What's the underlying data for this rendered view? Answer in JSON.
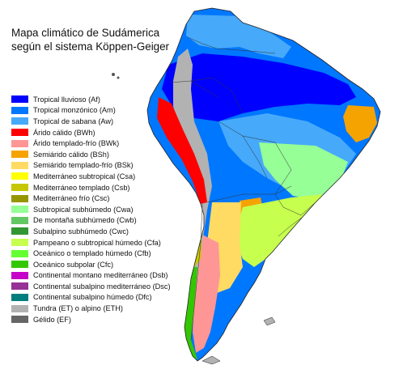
{
  "title": {
    "line1": "Mapa climático de Sudámerica",
    "line2": "según el sistema Köppen-Geiger"
  },
  "legend": [
    {
      "label": "Tropical lluvioso (Af)",
      "color": "#0000fe"
    },
    {
      "label": "Tropical monzónico (Am)",
      "color": "#0077ff"
    },
    {
      "label": "Tropical de sabana (Aw)",
      "color": "#46a9fa"
    },
    {
      "label": "Árido cálido (BWh)",
      "color": "#fe0000"
    },
    {
      "label": "Árido templado-frío (BWk)",
      "color": "#fe9695"
    },
    {
      "label": "Semiárido cálido (BSh)",
      "color": "#f5a301"
    },
    {
      "label": "Semiárido templado-frío (BSk)",
      "color": "#ffdb63"
    },
    {
      "label": "Mediterráneo subtropical (Csa)",
      "color": "#ffff00"
    },
    {
      "label": "Mediterráneo templado (Csb)",
      "color": "#c6c700"
    },
    {
      "label": "Mediterráneo frío (Csc)",
      "color": "#969600"
    },
    {
      "label": "Subtropical subhúmedo (Cwa)",
      "color": "#96ff96"
    },
    {
      "label": "De montaña subhúmedo (Cwb)",
      "color": "#63c764"
    },
    {
      "label": "Subalpino subhúmedo (Cwc)",
      "color": "#329633"
    },
    {
      "label": "Pampeano o subtropical húmedo (Cfa)",
      "color": "#c6ff4e"
    },
    {
      "label": "Oceánico o templado húmedo (Cfb)",
      "color": "#66ff33"
    },
    {
      "label": "Oceánico subpolar (Cfc)",
      "color": "#33c701"
    },
    {
      "label": "Continental montano mediterráneo (Dsb)",
      "color": "#c600c7"
    },
    {
      "label": "Continental subalpino mediterráneo (Dsc)",
      "color": "#963295"
    },
    {
      "label": "Continental subalpino húmedo (Dfc)",
      "color": "#007e7d"
    },
    {
      "label": "Tundra (ET) o alpino (ETH)",
      "color": "#b2b2b2"
    },
    {
      "label": "Gélido (EF)",
      "color": "#666666"
    }
  ]
}
